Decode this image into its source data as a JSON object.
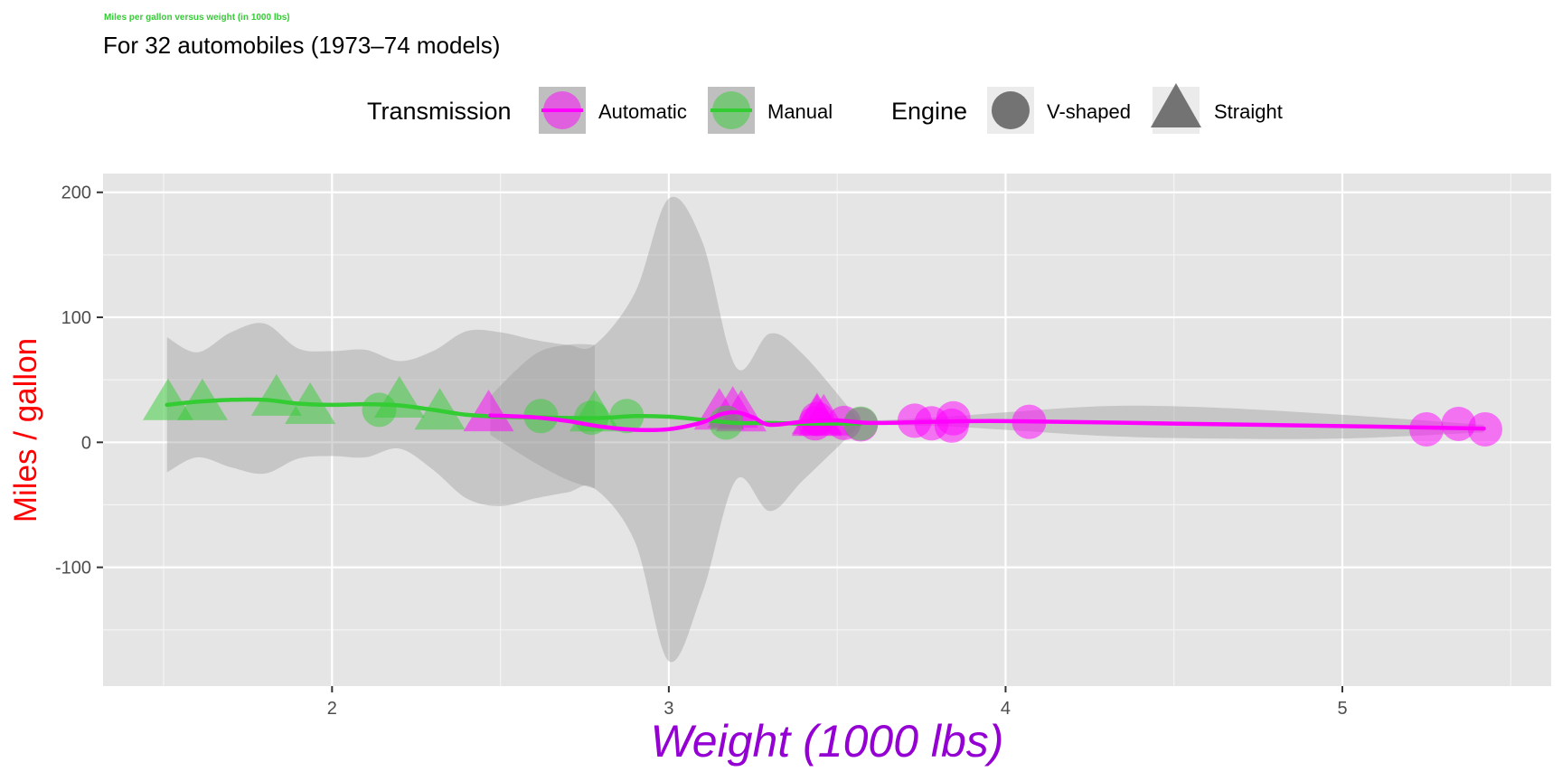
{
  "chart_data": {
    "type": "scatter",
    "title": "Miles per gallon versus weight (in 1000 lbs)",
    "subtitle": "For 32 automobiles (1973–74 models)",
    "xlabel": "Weight (1000 lbs)",
    "ylabel": "Miles / gallon",
    "xlim": [
      1.32,
      5.62
    ],
    "ylim": [
      -195,
      215
    ],
    "x_ticks": [
      2,
      3,
      4,
      5
    ],
    "y_ticks": [
      -100,
      0,
      100,
      200
    ],
    "x_tick_labels": [
      "2",
      "3",
      "4",
      "5"
    ],
    "y_tick_labels": [
      "-100",
      "0",
      "100",
      "200"
    ],
    "grid": true,
    "colors": {
      "title": "#33cc33",
      "ylabel": "#ff0000",
      "xlabel": "#9400d3",
      "automatic": "#ff00ff",
      "manual": "#33cc33",
      "panel": "#e5e5e5",
      "ribbon": "#999999",
      "engine_key": "#666666"
    },
    "legend": {
      "placement": "top",
      "transmission": {
        "title": "Transmission",
        "entries": [
          {
            "label": "Automatic",
            "key": "automatic"
          },
          {
            "label": "Manual",
            "key": "manual"
          }
        ]
      },
      "engine": {
        "title": "Engine",
        "entries": [
          {
            "label": "V-shaped",
            "shape": "circle"
          },
          {
            "label": "Straight",
            "shape": "triangle"
          }
        ]
      }
    },
    "points": [
      {
        "x": 2.62,
        "y": 21.0,
        "am": "manual",
        "vs": "V-shaped"
      },
      {
        "x": 2.875,
        "y": 21.0,
        "am": "manual",
        "vs": "V-shaped"
      },
      {
        "x": 2.32,
        "y": 22.8,
        "am": "manual",
        "vs": "Straight"
      },
      {
        "x": 3.215,
        "y": 21.4,
        "am": "automatic",
        "vs": "Straight"
      },
      {
        "x": 3.44,
        "y": 18.7,
        "am": "automatic",
        "vs": "V-shaped"
      },
      {
        "x": 3.46,
        "y": 18.1,
        "am": "automatic",
        "vs": "Straight"
      },
      {
        "x": 3.57,
        "y": 14.3,
        "am": "automatic",
        "vs": "V-shaped"
      },
      {
        "x": 3.19,
        "y": 24.4,
        "am": "automatic",
        "vs": "Straight"
      },
      {
        "x": 3.15,
        "y": 22.8,
        "am": "automatic",
        "vs": "Straight"
      },
      {
        "x": 3.44,
        "y": 19.2,
        "am": "automatic",
        "vs": "Straight"
      },
      {
        "x": 3.44,
        "y": 17.8,
        "am": "automatic",
        "vs": "Straight"
      },
      {
        "x": 4.07,
        "y": 16.4,
        "am": "automatic",
        "vs": "V-shaped"
      },
      {
        "x": 3.73,
        "y": 17.3,
        "am": "automatic",
        "vs": "V-shaped"
      },
      {
        "x": 3.78,
        "y": 15.2,
        "am": "automatic",
        "vs": "V-shaped"
      },
      {
        "x": 5.25,
        "y": 10.4,
        "am": "automatic",
        "vs": "V-shaped"
      },
      {
        "x": 5.424,
        "y": 10.4,
        "am": "automatic",
        "vs": "V-shaped"
      },
      {
        "x": 5.345,
        "y": 14.7,
        "am": "automatic",
        "vs": "V-shaped"
      },
      {
        "x": 2.2,
        "y": 32.4,
        "am": "manual",
        "vs": "Straight"
      },
      {
        "x": 1.615,
        "y": 30.4,
        "am": "manual",
        "vs": "Straight"
      },
      {
        "x": 1.835,
        "y": 33.9,
        "am": "manual",
        "vs": "Straight"
      },
      {
        "x": 2.465,
        "y": 21.5,
        "am": "automatic",
        "vs": "Straight"
      },
      {
        "x": 3.52,
        "y": 15.5,
        "am": "automatic",
        "vs": "V-shaped"
      },
      {
        "x": 3.435,
        "y": 15.2,
        "am": "automatic",
        "vs": "V-shaped"
      },
      {
        "x": 3.84,
        "y": 13.3,
        "am": "automatic",
        "vs": "V-shaped"
      },
      {
        "x": 3.845,
        "y": 19.2,
        "am": "automatic",
        "vs": "V-shaped"
      },
      {
        "x": 1.935,
        "y": 27.3,
        "am": "manual",
        "vs": "Straight"
      },
      {
        "x": 2.14,
        "y": 26.0,
        "am": "manual",
        "vs": "V-shaped"
      },
      {
        "x": 1.513,
        "y": 30.4,
        "am": "manual",
        "vs": "Straight"
      },
      {
        "x": 3.17,
        "y": 15.8,
        "am": "manual",
        "vs": "V-shaped"
      },
      {
        "x": 2.77,
        "y": 19.7,
        "am": "manual",
        "vs": "V-shaped"
      },
      {
        "x": 3.57,
        "y": 15.0,
        "am": "manual",
        "vs": "V-shaped"
      },
      {
        "x": 2.78,
        "y": 21.4,
        "am": "manual",
        "vs": "Straight"
      }
    ],
    "smooth_lines": [
      {
        "key": "manual",
        "x": [
          1.51,
          1.6,
          1.7,
          1.8,
          1.9,
          2.0,
          2.1,
          2.2,
          2.3,
          2.4,
          2.5,
          2.6,
          2.7,
          2.8,
          2.9,
          3.0,
          3.1,
          3.2,
          3.3,
          3.4,
          3.57
        ],
        "y": [
          30.0,
          32.5,
          34.0,
          34.0,
          31.0,
          30.0,
          30.5,
          29.5,
          26.0,
          22.0,
          20.5,
          20.0,
          19.5,
          19.5,
          21.0,
          20.5,
          18.0,
          15.5,
          15.5,
          15.0,
          15.0
        ]
      },
      {
        "key": "automatic",
        "x": [
          2.47,
          2.6,
          2.7,
          2.8,
          2.9,
          3.0,
          3.1,
          3.15,
          3.2,
          3.25,
          3.3,
          3.4,
          3.5,
          3.6,
          3.8,
          4.0,
          4.5,
          5.0,
          5.42
        ],
        "y": [
          21.5,
          20.0,
          17.0,
          12.5,
          10.0,
          10.5,
          16.0,
          22.0,
          24.0,
          20.0,
          14.0,
          16.5,
          17.5,
          15.5,
          16.5,
          17.0,
          15.0,
          13.0,
          11.0
        ]
      }
    ],
    "confidence_bands": [
      {
        "key": "manual",
        "x": [
          1.51,
          1.6,
          1.7,
          1.8,
          1.9,
          2.0,
          2.1,
          2.2,
          2.3,
          2.4,
          2.5,
          2.6,
          2.7,
          2.78,
          2.9,
          3.0,
          3.1,
          3.2,
          3.3,
          3.4,
          3.57
        ],
        "upper": [
          84,
          72,
          88,
          95,
          75,
          73,
          74,
          65,
          73,
          89,
          88,
          82,
          78,
          78,
          120,
          195,
          160,
          60,
          87,
          70,
          16
        ],
        "lower": [
          -24,
          -12,
          -20,
          -25,
          -13,
          -11,
          -12,
          -5,
          -22,
          -45,
          -51,
          -45,
          -40,
          -37,
          -80,
          -175,
          -120,
          -30,
          -55,
          -30,
          14
        ]
      },
      {
        "key": "automatic",
        "x": [
          2.47,
          2.6,
          2.7,
          2.78
        ],
        "upper": [
          37,
          70,
          78,
          78
        ],
        "lower": [
          6,
          -16,
          -30,
          -37
        ]
      },
      {
        "key": "automatic",
        "x": [
          3.57,
          3.8,
          4.0,
          4.3,
          4.6,
          5.0,
          5.42
        ],
        "upper": [
          17,
          20,
          24,
          29,
          28,
          22,
          14
        ],
        "lower": [
          14,
          13,
          10,
          5,
          3,
          3,
          8
        ]
      }
    ]
  }
}
